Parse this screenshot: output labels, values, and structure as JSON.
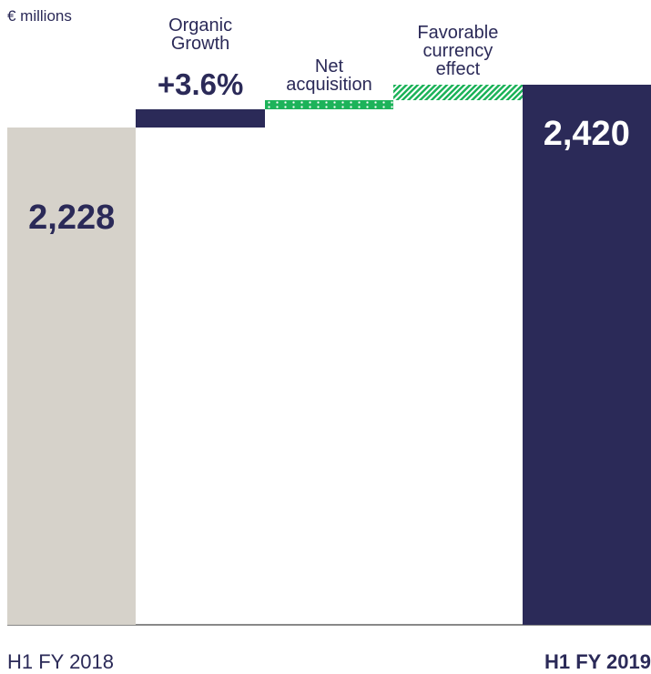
{
  "chart_data": {
    "type": "waterfall",
    "subtitle": "€ millions",
    "categories": [
      "H1 FY 2018",
      "Organic Growth",
      "Net acquisition",
      "Favorable currency effect",
      "H1 FY 2019"
    ],
    "values": [
      2228,
      80,
      42,
      70,
      2420
    ],
    "value_labels": [
      "2,228",
      null,
      null,
      null,
      "2,420"
    ],
    "annotation": {
      "category": "Organic Growth",
      "text": "+3.6%"
    },
    "colors": [
      "#d6d2ca",
      "#2b2a58",
      "#1db35a",
      "#1db35a",
      "#2b2a58"
    ],
    "patterns": [
      null,
      null,
      "dotted",
      "hatched",
      null
    ],
    "ylim": [
      0,
      2420
    ]
  }
}
